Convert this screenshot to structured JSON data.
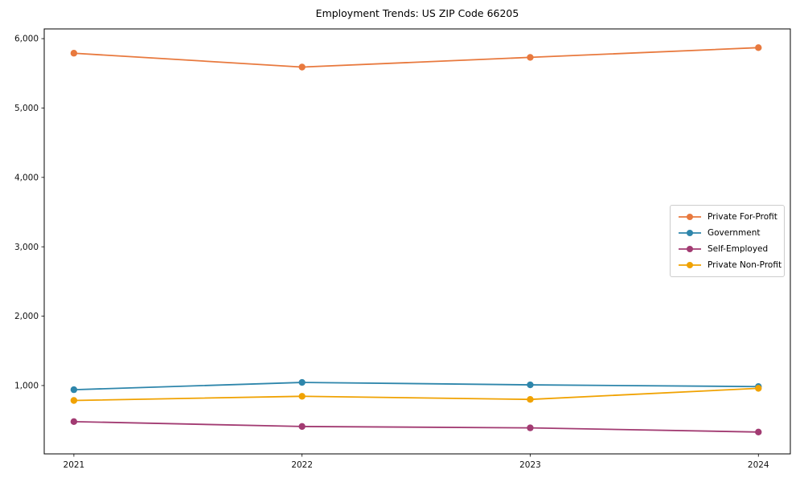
{
  "chart_data": {
    "type": "line",
    "title": "Employment Trends: US ZIP Code 66205",
    "xlabel": "",
    "ylabel": "",
    "x": [
      2021,
      2022,
      2023,
      2024
    ],
    "x_tick_labels": [
      "2021",
      "2022",
      "2023",
      "2024"
    ],
    "y_ticks": [
      1000,
      2000,
      3000,
      4000,
      5000,
      6000
    ],
    "y_tick_labels": [
      "1,000",
      "2,000",
      "3,000",
      "4,000",
      "5,000",
      "6,000"
    ],
    "xlim": [
      2020.87,
      2024.14
    ],
    "ylim": [
      15,
      6140
    ],
    "grid": false,
    "legend_position": "center-right",
    "frame_color": "#000000",
    "tick_label_color": "#111111",
    "series": [
      {
        "name": "Private For-Profit",
        "color": "#E8793E",
        "marker": "circle",
        "values": [
          5790,
          5590,
          5730,
          5870
        ]
      },
      {
        "name": "Government",
        "color": "#2E86AB",
        "marker": "circle",
        "values": [
          940,
          1045,
          1010,
          985
        ]
      },
      {
        "name": "Self-Employed",
        "color": "#A23B72",
        "marker": "circle",
        "values": [
          480,
          410,
          390,
          330
        ]
      },
      {
        "name": "Private Non-Profit",
        "color": "#F0A202",
        "marker": "circle",
        "values": [
          785,
          845,
          800,
          960
        ]
      }
    ]
  }
}
